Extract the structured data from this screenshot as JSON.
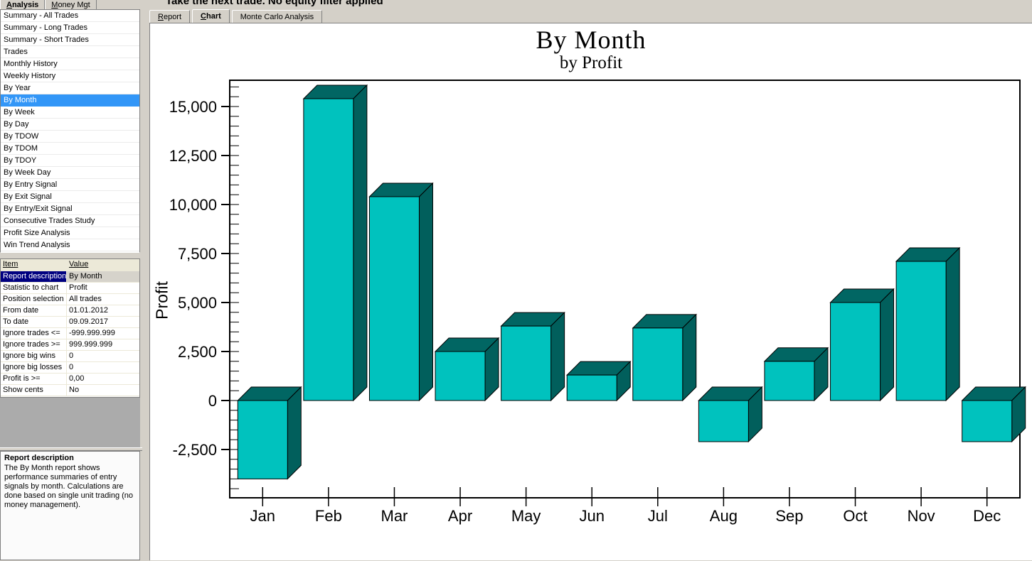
{
  "window": {
    "header_text": "Take the next trade. No equity filter applied"
  },
  "left_tabs": {
    "analysis": "Analysis",
    "money_mgt": "Money Mgt"
  },
  "main_tabs": {
    "report": "Report",
    "chart": "Chart",
    "monte_carlo": "Monte Carlo Analysis"
  },
  "sidebar": {
    "items": [
      {
        "label": "Summary - All Trades",
        "selected": false
      },
      {
        "label": "Summary - Long Trades",
        "selected": false
      },
      {
        "label": "Summary - Short Trades",
        "selected": false
      },
      {
        "label": "Trades",
        "selected": false
      },
      {
        "label": "Monthly History",
        "selected": false
      },
      {
        "label": "Weekly History",
        "selected": false
      },
      {
        "label": "By Year",
        "selected": false
      },
      {
        "label": "By Month",
        "selected": true
      },
      {
        "label": "By Week",
        "selected": false
      },
      {
        "label": "By Day",
        "selected": false
      },
      {
        "label": "By TDOW",
        "selected": false
      },
      {
        "label": "By TDOM",
        "selected": false
      },
      {
        "label": "By TDOY",
        "selected": false
      },
      {
        "label": "By Week Day",
        "selected": false
      },
      {
        "label": "By Entry Signal",
        "selected": false
      },
      {
        "label": "By Exit Signal",
        "selected": false
      },
      {
        "label": "By Entry/Exit Signal",
        "selected": false
      },
      {
        "label": "Consecutive Trades Study",
        "selected": false
      },
      {
        "label": "Profit Size Analysis",
        "selected": false
      },
      {
        "label": "Win Trend Analysis",
        "selected": false
      }
    ]
  },
  "properties": {
    "headers": {
      "item": "Item",
      "value": "Value"
    },
    "rows": [
      {
        "item": "Report description",
        "value": "By Month",
        "selected": true
      },
      {
        "item": "Statistic to chart",
        "value": "Profit",
        "selected": false
      },
      {
        "item": "Position selection",
        "value": "All trades",
        "selected": false
      },
      {
        "item": "From date",
        "value": "01.01.2012",
        "selected": false
      },
      {
        "item": "To date",
        "value": "09.09.2017",
        "selected": false
      },
      {
        "item": "Ignore trades <=",
        "value": "-999.999.999",
        "selected": false
      },
      {
        "item": "Ignore trades >=",
        "value": "999.999.999",
        "selected": false
      },
      {
        "item": "Ignore big wins",
        "value": "0",
        "selected": false
      },
      {
        "item": "Ignore big losses",
        "value": "0",
        "selected": false
      },
      {
        "item": "Profit is >=",
        "value": "0,00",
        "selected": false
      },
      {
        "item": "Show cents",
        "value": "No",
        "selected": false
      }
    ]
  },
  "info_panel": {
    "title": "Report description",
    "body": "The By Month report shows performance summaries of entry signals by month. Calculations are done based on single unit trading (no money management)."
  },
  "ui_colors": {
    "selection_blue": "#3296F7",
    "selection_navy": "#000080",
    "window_grey": "#D4D0C8",
    "panel_grey": "#ABABAB",
    "header_beige": "#ECE9D8"
  },
  "chart_data": {
    "type": "bar",
    "style": "3d-oblique",
    "title": "By Month",
    "subtitle": "by Profit",
    "ylabel": "Profit",
    "xlabel": "",
    "categories": [
      "Jan",
      "Feb",
      "Mar",
      "Apr",
      "May",
      "Jun",
      "Jul",
      "Aug",
      "Sep",
      "Oct",
      "Nov",
      "Dec"
    ],
    "values": [
      -4000,
      15400,
      10400,
      2500,
      3800,
      1300,
      3700,
      -2100,
      2000,
      5000,
      7100,
      -2100
    ],
    "ylim": [
      -4500,
      16000
    ],
    "ytick_interval": 2500,
    "minor_tick_interval": 500,
    "ytick_label_min": -2500,
    "ytick_label_max": 15000,
    "grid": false,
    "legend": false,
    "colors": {
      "front": "#00C2BE",
      "side": "#015F5C",
      "top": "#016663",
      "outline": "#000000"
    }
  }
}
